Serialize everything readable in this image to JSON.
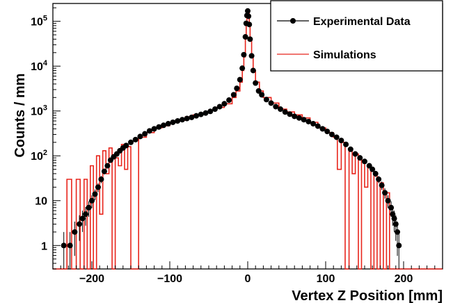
{
  "chart_data": {
    "type": "scatter",
    "title": "",
    "xlabel": "Vertex Z Position [mm]",
    "ylabel": "Counts / mm",
    "xlim": [
      -250,
      250
    ],
    "ylim_log": [
      0.3,
      250000
    ],
    "y_scale": "log",
    "grid": false,
    "legend_position": "top-right",
    "x_ticks": [
      -200,
      -100,
      0,
      100,
      200
    ],
    "x_tick_labels": [
      "−200",
      "−100",
      "0",
      "100",
      "200"
    ],
    "y_ticks": [
      1,
      10,
      100,
      1000,
      10000,
      100000
    ],
    "y_tick_labels": [
      {
        "base": "1",
        "exp": ""
      },
      {
        "base": "10",
        "exp": ""
      },
      {
        "base": "10",
        "exp": "2"
      },
      {
        "base": "10",
        "exp": "3"
      },
      {
        "base": "10",
        "exp": "4"
      },
      {
        "base": "10",
        "exp": "5"
      }
    ],
    "series": [
      {
        "name": "Experimental Data",
        "style": "markers",
        "color": "#000000",
        "x": [
          -236,
          -228,
          -222,
          -216,
          -212,
          -208,
          -204,
          -200,
          -196,
          -192,
          -188,
          -184,
          -180,
          -176,
          -172,
          -168,
          -164,
          -160,
          -156,
          -150,
          -144,
          -138,
          -132,
          -126,
          -120,
          -114,
          -108,
          -102,
          -96,
          -90,
          -84,
          -78,
          -72,
          -66,
          -60,
          -54,
          -48,
          -42,
          -36,
          -30,
          -24,
          -18,
          -14,
          -10,
          -7,
          -5,
          -3,
          -2,
          -1,
          0,
          1,
          2,
          3,
          5,
          7,
          10,
          14,
          18,
          24,
          30,
          36,
          42,
          48,
          54,
          60,
          66,
          72,
          78,
          84,
          90,
          96,
          102,
          108,
          114,
          120,
          126,
          132,
          138,
          144,
          150,
          156,
          160,
          164,
          168,
          172,
          176,
          180,
          184,
          186,
          188,
          190,
          192,
          194
        ],
        "y": [
          1,
          1,
          2,
          3,
          4,
          5,
          7,
          10,
          14,
          20,
          30,
          45,
          60,
          80,
          95,
          110,
          130,
          150,
          170,
          200,
          230,
          270,
          310,
          360,
          400,
          440,
          480,
          520,
          560,
          600,
          640,
          680,
          720,
          780,
          840,
          900,
          980,
          1100,
          1250,
          1450,
          1750,
          2300,
          3200,
          5000,
          9000,
          18000,
          45000,
          90000,
          135000,
          170000,
          130000,
          85000,
          40000,
          17000,
          8000,
          4200,
          2800,
          2300,
          1800,
          1500,
          1250,
          1100,
          950,
          850,
          760,
          700,
          640,
          580,
          520,
          460,
          400,
          350,
          300,
          260,
          220,
          180,
          140,
          110,
          90,
          75,
          60,
          50,
          40,
          30,
          22,
          15,
          10,
          7,
          5,
          4,
          3,
          2,
          1
        ]
      },
      {
        "name": "Simulations",
        "style": "step",
        "color": "#e8251c",
        "x": [
          -250,
          -232,
          -226,
          -220,
          -215,
          -210,
          -206,
          -202,
          -198,
          -194,
          -190,
          -186,
          -182,
          -178,
          -174,
          -170,
          -166,
          -162,
          -158,
          -154,
          -150,
          -140,
          -130,
          -120,
          -110,
          -100,
          -90,
          -80,
          -70,
          -60,
          -50,
          -40,
          -30,
          -20,
          -15,
          -10,
          -7,
          -5,
          -3,
          -2,
          -1,
          0,
          1,
          2,
          3,
          5,
          7,
          10,
          15,
          20,
          30,
          40,
          50,
          60,
          70,
          80,
          90,
          100,
          110,
          115,
          120,
          125,
          130,
          134,
          138,
          142,
          146,
          150,
          154,
          158,
          162,
          166,
          170,
          174,
          178,
          182,
          250
        ],
        "y": [
          0.3,
          30,
          0.3,
          30,
          0.3,
          30,
          0.3,
          60,
          0.3,
          100,
          5,
          130,
          40,
          150,
          0.3,
          90,
          60,
          180,
          50,
          160,
          0.3,
          260,
          330,
          420,
          470,
          560,
          620,
          740,
          820,
          900,
          1050,
          1200,
          1450,
          2000,
          2800,
          4400,
          8000,
          16000,
          40000,
          85000,
          150000,
          175000,
          150000,
          85000,
          40000,
          16000,
          8000,
          4400,
          2800,
          2000,
          1500,
          1100,
          950,
          820,
          700,
          560,
          420,
          330,
          260,
          50,
          200,
          0.3,
          150,
          40,
          110,
          0.3,
          80,
          20,
          60,
          0.3,
          40,
          0.3,
          25,
          0.3,
          15,
          0.3,
          0.3
        ]
      }
    ]
  }
}
